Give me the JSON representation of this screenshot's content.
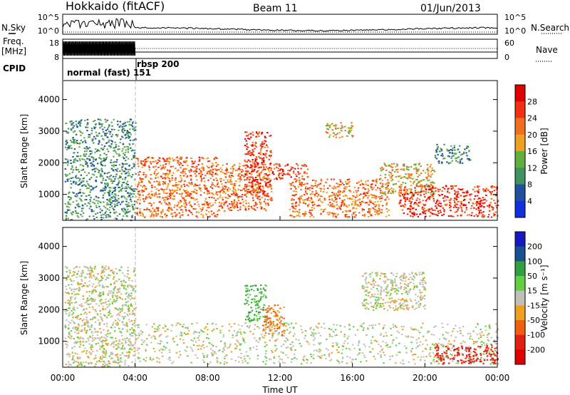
{
  "header": {
    "station": "Hokkaido (fitACF)",
    "beam": "Beam 11",
    "date": "01/Jun/2013"
  },
  "nsky_panel": {
    "label": "N.Sky",
    "right_label": "N.Search",
    "y_ticks_left": [
      "10^5",
      "10^0"
    ],
    "y_ticks_right": [
      "10^5",
      "10^0"
    ]
  },
  "freq_panel": {
    "label_line1": "Freq.",
    "label_line2": "[MHz]",
    "right_label": "Nave",
    "y_ticks_left": [
      "18",
      "8"
    ],
    "y_ticks_right": [
      "60",
      "0"
    ]
  },
  "cpid": {
    "label": "CPID",
    "modes": [
      "normal (fast) 151",
      "rbsp 200"
    ]
  },
  "power_panel": {
    "ylabel": "Slant Range [km]",
    "colorbar_label": "Power [dB]",
    "colorbar_ticks": [
      "28",
      "24",
      "20",
      "16",
      "12",
      "8",
      "4"
    ],
    "colors": [
      "#1030e0",
      "#2050a0",
      "#409060",
      "#60b040",
      "#f0a020",
      "#f07020",
      "#f03010",
      "#e00000"
    ]
  },
  "velocity_panel": {
    "ylabel": "Slant Range [km]",
    "colorbar_label": "Velocity [m s⁻¹]",
    "colorbar_ticks": [
      "200",
      "100",
      "50",
      "15",
      "-15",
      "-50",
      "-100",
      "-200"
    ],
    "colors": [
      "#1818c0",
      "#185090",
      "#30a040",
      "#60d040",
      "#c0c0b8",
      "#f0a020",
      "#f06010",
      "#e02010",
      "#e00000"
    ]
  },
  "y_ticks": [
    "4000",
    "3000",
    "2000",
    "1000"
  ],
  "x_ticks": [
    "00:00",
    "04:00",
    "08:00",
    "12:00",
    "16:00",
    "20:00",
    "00:00"
  ],
  "xlabel": "Time UT",
  "chart_data": [
    {
      "type": "heatmap",
      "title": "Power [dB]",
      "ylabel": "Slant Range [km]",
      "xlabel": "Time UT",
      "x_range_hours": [
        0,
        24
      ],
      "y_range_km": [
        180,
        4600
      ],
      "colorbar_range_db": [
        0,
        32
      ],
      "scatter_regions": [
        {
          "t0": 0.1,
          "t1": 4.0,
          "r0": 200,
          "r1": 3400,
          "db": 10
        },
        {
          "t0": 4.0,
          "t1": 8.5,
          "r0": 300,
          "r1": 2200,
          "db": 24
        },
        {
          "t0": 8.5,
          "t1": 11.5,
          "r0": 500,
          "r1": 2000,
          "db": 22
        },
        {
          "t0": 10.0,
          "t1": 11.5,
          "r0": 1000,
          "r1": 3000,
          "db": 26
        },
        {
          "t0": 11.5,
          "t1": 13.5,
          "r0": 1500,
          "r1": 2000,
          "db": 27
        },
        {
          "t0": 12.5,
          "t1": 18.0,
          "r0": 300,
          "r1": 1500,
          "db": 22
        },
        {
          "t0": 17.5,
          "t1": 20.5,
          "r0": 1000,
          "r1": 2000,
          "db": 20
        },
        {
          "t0": 18.5,
          "t1": 24.0,
          "r0": 300,
          "r1": 1300,
          "db": 28
        },
        {
          "t0": 14.5,
          "t1": 16.0,
          "r0": 2800,
          "r1": 3300,
          "db": 18
        },
        {
          "t0": 20.5,
          "t1": 22.5,
          "r0": 2000,
          "r1": 2600,
          "db": 10
        }
      ]
    },
    {
      "type": "heatmap",
      "title": "Velocity [m s-1]",
      "ylabel": "Slant Range [km]",
      "xlabel": "Time UT",
      "x_range_hours": [
        0,
        24
      ],
      "y_range_km": [
        180,
        4600
      ],
      "colorbar_range_ms": [
        -250,
        250
      ],
      "scatter_regions": [
        {
          "t0": 0.1,
          "t1": 4.0,
          "r0": 200,
          "r1": 3400,
          "v": 0
        },
        {
          "t0": 4.0,
          "t1": 24.0,
          "r0": 300,
          "r1": 1600,
          "v": 0
        },
        {
          "t0": 10.0,
          "t1": 11.2,
          "r0": 1600,
          "r1": 2800,
          "v": 60
        },
        {
          "t0": 11.0,
          "t1": 12.2,
          "r0": 1200,
          "r1": 2200,
          "v": -60
        },
        {
          "t0": 16.5,
          "t1": 20.0,
          "r0": 2000,
          "r1": 3200,
          "v": 0
        },
        {
          "t0": 20.5,
          "t1": 24.0,
          "r0": 300,
          "r1": 900,
          "v": -150
        }
      ]
    }
  ]
}
